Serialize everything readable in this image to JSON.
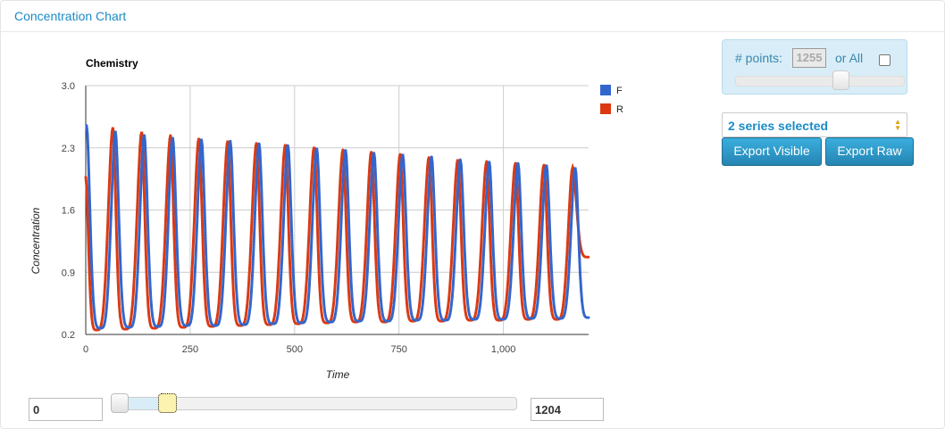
{
  "panel": {
    "title": "Concentration Chart"
  },
  "controls": {
    "points_label": "# points:",
    "points_value": "1255",
    "or_all_label": "or All",
    "or_all_checked": false,
    "points_slider_fraction": 0.63,
    "series_select": "2 series selected",
    "export_visible_label": "Export Visible",
    "export_raw_label": "Export Raw",
    "range_from": "0",
    "range_to": "1204",
    "accent_color": "#1a8bc7"
  },
  "chart_data": {
    "type": "line",
    "title": "Chemistry",
    "xlabel": "Time",
    "ylabel": "Concentration",
    "xlim": [
      0,
      1204
    ],
    "ylim": [
      0.2,
      3.0
    ],
    "x_ticks": [
      0,
      250,
      500,
      750,
      1000
    ],
    "x_tick_labels": [
      "0",
      "250",
      "500",
      "750",
      "1,000"
    ],
    "y_ticks": [
      0.2,
      0.9,
      1.6,
      2.3,
      3.0
    ],
    "y_tick_labels": [
      "0.2",
      "0.9",
      "1.6",
      "2.3",
      "3.0"
    ],
    "grid": true,
    "legend_position": "right",
    "series": [
      {
        "name": "F",
        "color": "#3366cc",
        "peaks_x": [
          2,
          71,
          140,
          208,
          277,
          346,
          415,
          484,
          553,
          622,
          690,
          759,
          828,
          897,
          966,
          1035,
          1103,
          1172
        ],
        "peaks_y": [
          2.55,
          2.49,
          2.45,
          2.42,
          2.4,
          2.38,
          2.35,
          2.33,
          2.3,
          2.28,
          2.25,
          2.23,
          2.2,
          2.17,
          2.15,
          2.13,
          2.11,
          2.08
        ],
        "troughs_x": [
          36,
          105,
          174,
          243,
          311,
          380,
          449,
          518,
          587,
          655,
          724,
          793,
          862,
          931,
          999,
          1068,
          1137,
          1204
        ],
        "troughs_y": [
          0.27,
          0.28,
          0.29,
          0.3,
          0.3,
          0.31,
          0.32,
          0.33,
          0.34,
          0.35,
          0.35,
          0.36,
          0.36,
          0.37,
          0.37,
          0.38,
          0.38,
          0.39
        ]
      },
      {
        "name": "R",
        "color": "#dc3912",
        "peaks_x": [
          65,
          134,
          203,
          271,
          340,
          409,
          478,
          547,
          616,
          684,
          753,
          822,
          891,
          960,
          1029,
          1097,
          1166
        ],
        "peaks_y": [
          2.53,
          2.48,
          2.44,
          2.41,
          2.38,
          2.36,
          2.34,
          2.31,
          2.28,
          2.26,
          2.23,
          2.2,
          2.17,
          2.15,
          2.13,
          2.11,
          2.08
        ],
        "troughs_x": [
          27,
          96,
          165,
          234,
          303,
          371,
          440,
          509,
          578,
          647,
          716,
          784,
          853,
          922,
          991,
          1060,
          1129
        ],
        "troughs_y": [
          0.25,
          0.26,
          0.27,
          0.28,
          0.29,
          0.3,
          0.31,
          0.32,
          0.33,
          0.34,
          0.34,
          0.35,
          0.35,
          0.36,
          0.36,
          0.37,
          0.37
        ],
        "start": [
          0,
          1.97
        ],
        "end": [
          1204,
          1.07
        ]
      }
    ]
  }
}
